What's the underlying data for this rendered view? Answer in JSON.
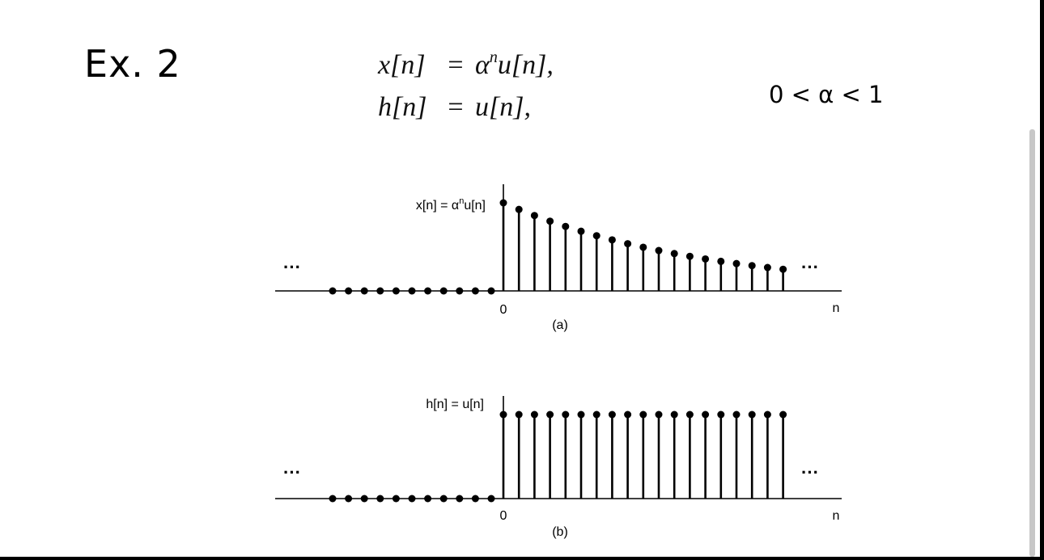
{
  "title": "Ex. 2",
  "equations": {
    "x": {
      "lhs": "x[n]",
      "eq": "=",
      "base": "α",
      "exp": "n",
      "tail": "u[n],"
    },
    "h": {
      "lhs": "h[n]",
      "eq": "=",
      "rhs": "u[n],"
    }
  },
  "constraint": "0 < α < 1",
  "chart_data": [
    {
      "type": "stem",
      "label": "x[n] = α",
      "label_exp": "n",
      "label_tail": "u[n]",
      "caption": "(a)",
      "origin_label": "0",
      "axis_label": "n",
      "ellipsis": "···",
      "n_negative": 11,
      "n_positive": 19,
      "alpha": 0.925
    },
    {
      "type": "stem",
      "label": "h[n] = u[n]",
      "caption": "(b)",
      "origin_label": "0",
      "axis_label": "n",
      "ellipsis": "···",
      "n_negative": 11,
      "n_positive": 19,
      "value": 1
    }
  ]
}
